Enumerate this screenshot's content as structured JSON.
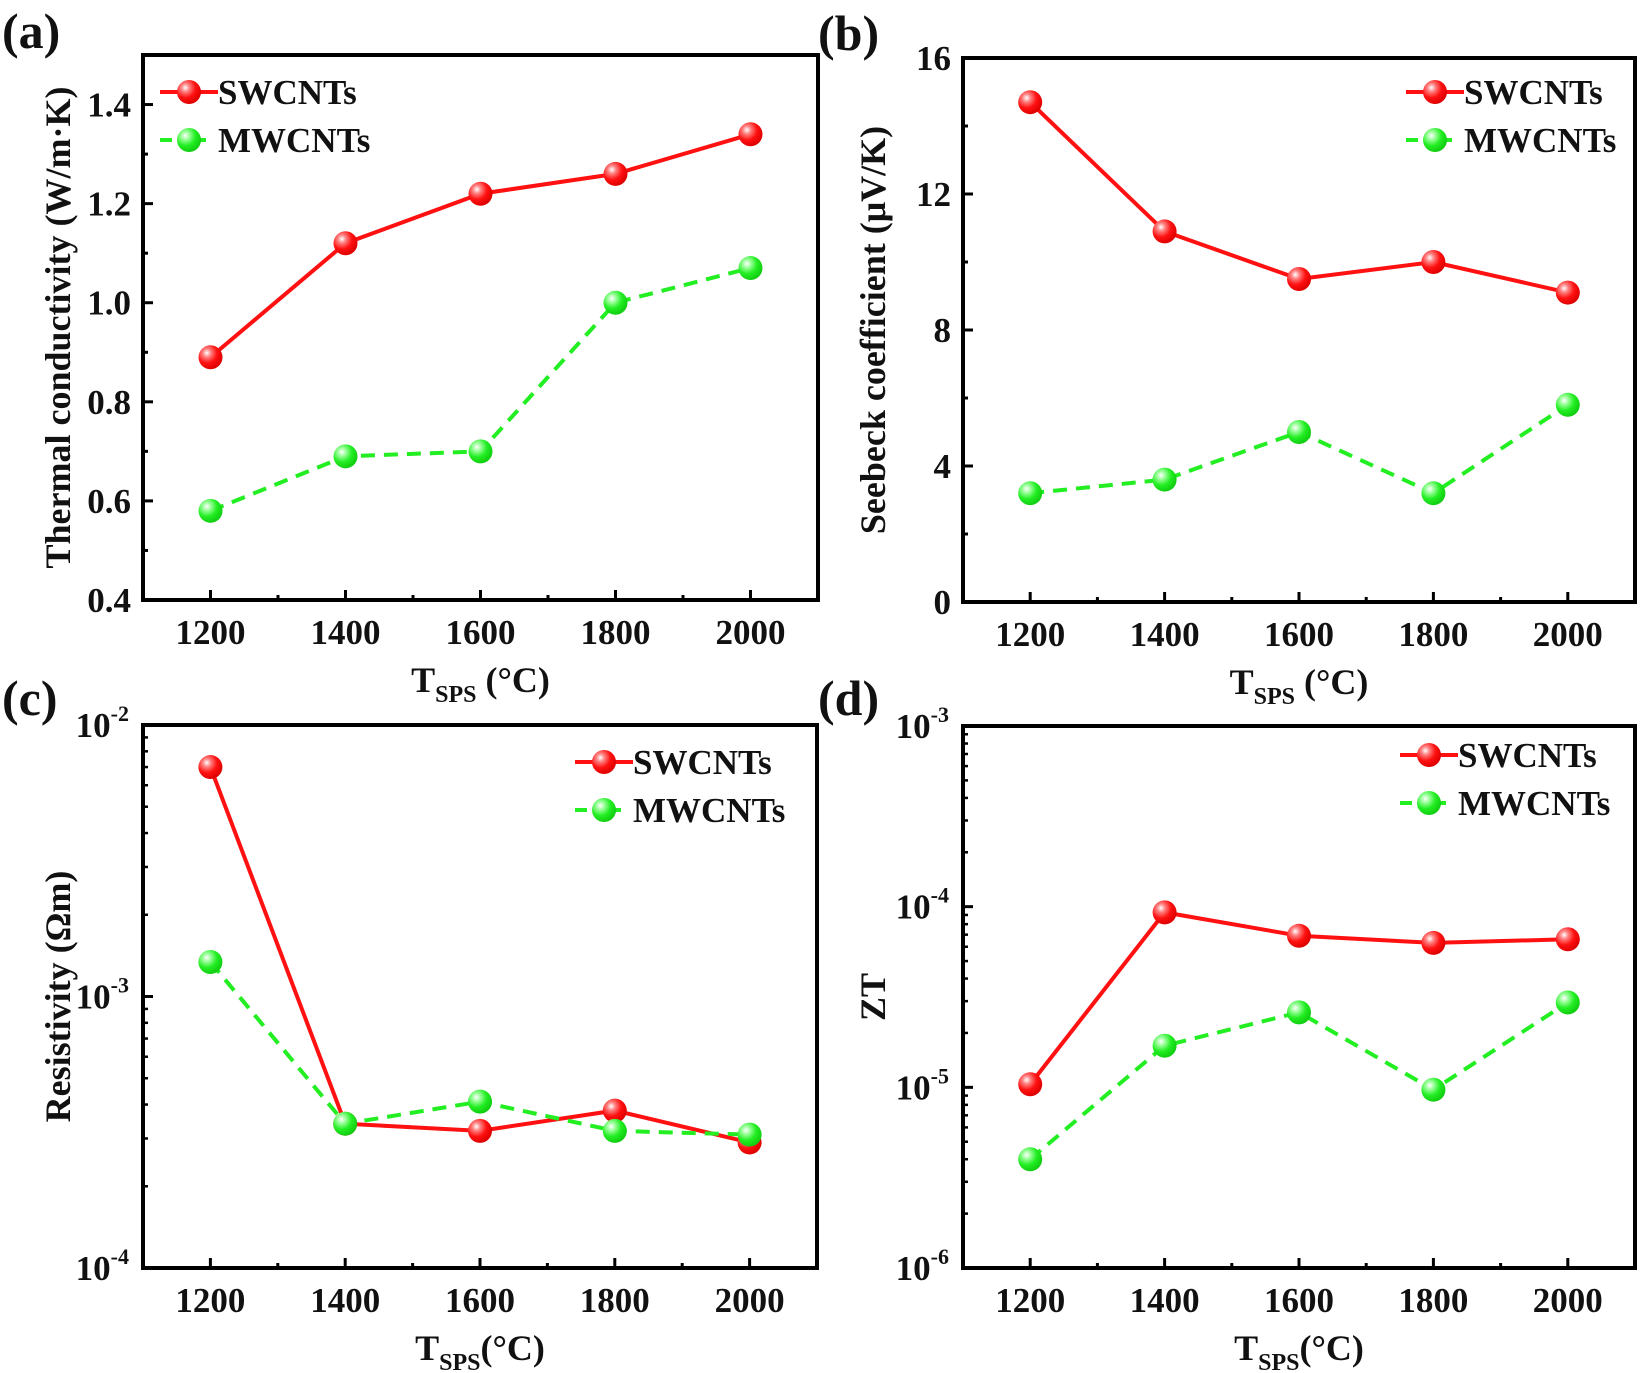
{
  "figure": {
    "type": "multi-panel line chart",
    "legend_position": "top-left (a), top-right (b, c, d)"
  },
  "chart_data": [
    {
      "id": "a",
      "panel_label": "(a)",
      "type": "line",
      "yscale": "linear",
      "x": [
        1200,
        1400,
        1600,
        1800,
        2000
      ],
      "xlim": [
        1100,
        2100
      ],
      "xticks": [
        "1200",
        "1400",
        "1600",
        "1800",
        "2000"
      ],
      "xlabel": {
        "main": "T",
        "sub": "SPS",
        "rest": " (°C)"
      },
      "ylabel": "Thermal conductivity (W/m·K)",
      "ylim": [
        0.4,
        1.5
      ],
      "yticks": [
        0.4,
        0.6,
        0.8,
        1.0,
        1.2,
        1.4
      ],
      "ytick_labels": [
        "0.4",
        "0.6",
        "0.8",
        "1.0",
        "1.2",
        "1.4"
      ],
      "legend": "top-left",
      "series": [
        {
          "name": "SWCNTs",
          "color": "#ff1111",
          "style": "solid",
          "values": [
            0.89,
            1.12,
            1.22,
            1.26,
            1.34
          ]
        },
        {
          "name": "MWCNTs",
          "color": "#22ee22",
          "style": "dashed",
          "values": [
            0.58,
            0.69,
            0.7,
            1.0,
            1.07
          ]
        }
      ]
    },
    {
      "id": "b",
      "panel_label": "(b)",
      "type": "line",
      "yscale": "linear",
      "x": [
        1200,
        1400,
        1600,
        1800,
        2000
      ],
      "xlim": [
        1100,
        2100
      ],
      "xticks": [
        "1200",
        "1400",
        "1600",
        "1800",
        "2000"
      ],
      "xlabel": {
        "main": "T",
        "sub": "SPS",
        "rest": " (°C)"
      },
      "ylabel": "Seebeck coefficient (μV/K)",
      "ylim": [
        0,
        16
      ],
      "yticks": [
        0,
        4,
        8,
        12,
        16
      ],
      "ytick_labels": [
        "0",
        "4",
        "8",
        "12",
        "16"
      ],
      "legend": "top-right",
      "series": [
        {
          "name": "SWCNTs",
          "color": "#ff1111",
          "style": "solid",
          "values": [
            14.7,
            10.9,
            9.5,
            10.0,
            9.1
          ]
        },
        {
          "name": "MWCNTs",
          "color": "#22ee22",
          "style": "dashed",
          "values": [
            3.2,
            3.6,
            5.0,
            3.2,
            5.8
          ]
        }
      ]
    },
    {
      "id": "c",
      "panel_label": "(c)",
      "type": "line",
      "yscale": "log",
      "x": [
        1200,
        1400,
        1600,
        1800,
        2000
      ],
      "xlim": [
        1100,
        2100
      ],
      "xticks": [
        "1200",
        "1400",
        "1600",
        "1800",
        "2000"
      ],
      "xlabel": {
        "main": "T",
        "sub": "SPS",
        "rest": "(°C)"
      },
      "ylabel": "Resistivity (Ωm)",
      "ylim": [
        0.0001,
        0.01
      ],
      "ytick_labels": [
        {
          "base": "10",
          "exp": "-4"
        },
        {
          "base": "10",
          "exp": "-3"
        },
        {
          "base": "10",
          "exp": "-2"
        }
      ],
      "legend": "top-right",
      "series": [
        {
          "name": "SWCNTs",
          "color": "#ff1111",
          "style": "solid",
          "values": [
            0.007,
            0.00034,
            0.00032,
            0.00038,
            0.00029
          ]
        },
        {
          "name": "MWCNTs",
          "color": "#22ee22",
          "style": "dashed",
          "values": [
            0.00134,
            0.00034,
            0.00041,
            0.00032,
            0.00031
          ]
        }
      ]
    },
    {
      "id": "d",
      "panel_label": "(d)",
      "type": "line",
      "yscale": "log",
      "x": [
        1200,
        1400,
        1600,
        1800,
        2000
      ],
      "xlim": [
        1100,
        2100
      ],
      "xticks": [
        "1200",
        "1400",
        "1600",
        "1800",
        "2000"
      ],
      "xlabel": {
        "main": "T",
        "sub": "SPS",
        "rest": "(°C)"
      },
      "ylabel": "ZT",
      "ylim": [
        1e-06,
        0.001
      ],
      "ytick_labels": [
        {
          "base": "10",
          "exp": "-6"
        },
        {
          "base": "10",
          "exp": "-5"
        },
        {
          "base": "10",
          "exp": "-4"
        },
        {
          "base": "10",
          "exp": "-3"
        }
      ],
      "legend": "top-right",
      "series": [
        {
          "name": "SWCNTs",
          "color": "#ff1111",
          "style": "solid",
          "values": [
            1.04e-05,
            9.3e-05,
            6.9e-05,
            6.3e-05,
            6.6e-05
          ]
        },
        {
          "name": "MWCNTs",
          "color": "#22ee22",
          "style": "dashed",
          "values": [
            4e-06,
            1.7e-05,
            2.6e-05,
            9.7e-06,
            2.95e-05
          ]
        }
      ]
    }
  ]
}
